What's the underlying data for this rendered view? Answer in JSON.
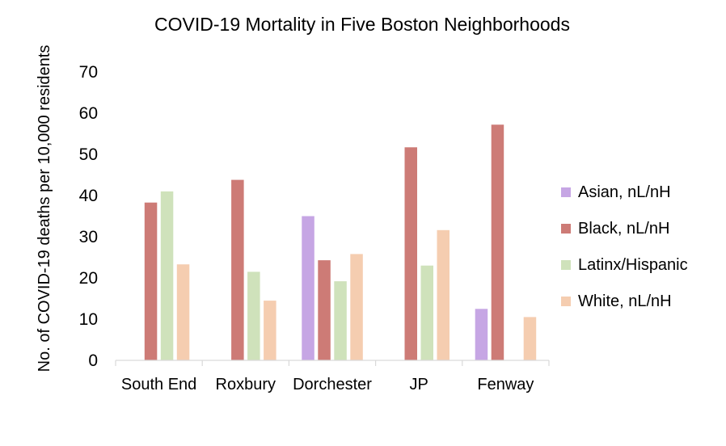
{
  "chart_data": {
    "type": "bar",
    "title": "COVID-19 Mortality in Five Boston Neighborhoods",
    "xlabel": "",
    "ylabel": "No. of COVID-19 deaths per 10,000 residents",
    "ylim": [
      0,
      70
    ],
    "yticks": [
      0,
      10,
      20,
      30,
      40,
      50,
      60,
      70
    ],
    "grid": false,
    "legend_position": "right",
    "categories": [
      "South End",
      "Roxbury",
      "Dorchester",
      "JP",
      "Fenway"
    ],
    "series": [
      {
        "name": "Asian, nL/nH",
        "color": "#c6a6e4",
        "values": [
          null,
          null,
          35,
          null,
          12.5
        ]
      },
      {
        "name": "Black, nL/nH",
        "color": "#cd7b76",
        "values": [
          38.3,
          43.8,
          24.3,
          51.7,
          57.2
        ]
      },
      {
        "name": "Latinx/Hispanic",
        "color": "#cfe2bb",
        "values": [
          41,
          21.5,
          19.2,
          23,
          null
        ]
      },
      {
        "name": "White, nL/nH",
        "color": "#f5cdb0",
        "values": [
          23.3,
          14.5,
          25.8,
          31.6,
          10.5
        ]
      }
    ]
  }
}
